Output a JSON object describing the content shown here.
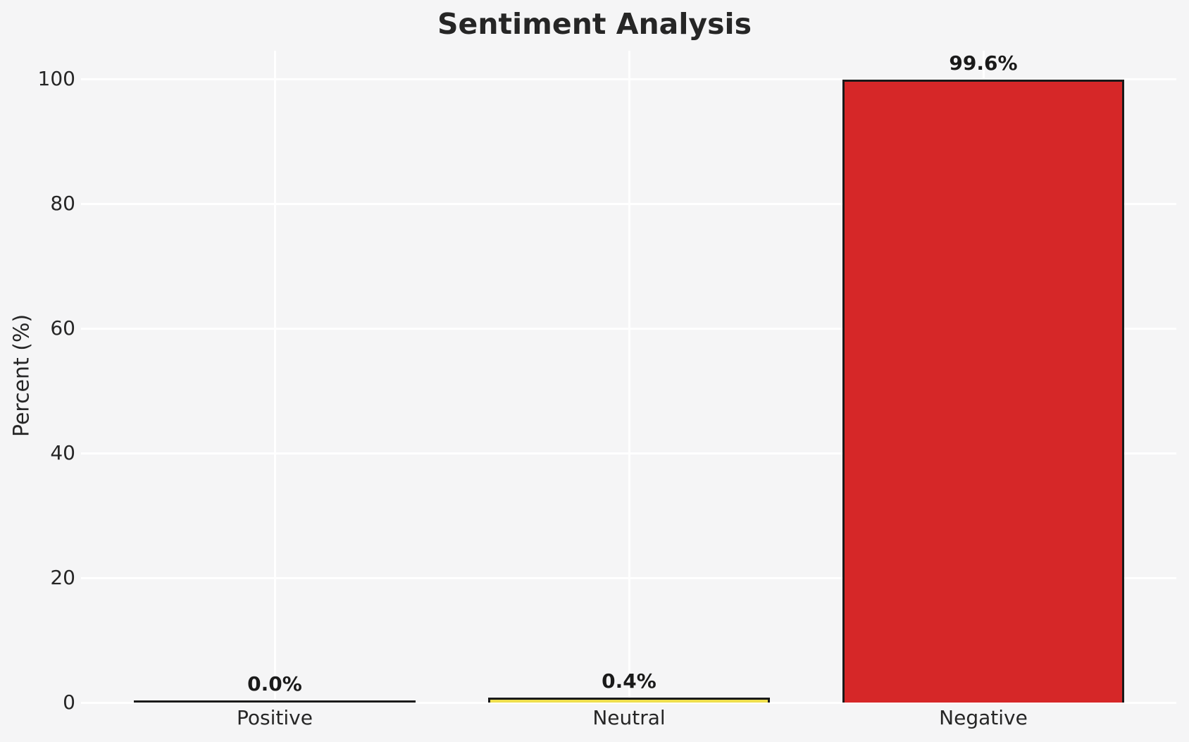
{
  "title": "Sentiment Analysis",
  "chart_data": {
    "type": "bar",
    "title": "Sentiment Analysis",
    "xlabel": "",
    "ylabel": "Percent (%)",
    "categories": [
      "Positive",
      "Neutral",
      "Negative"
    ],
    "values": [
      0.0,
      0.4,
      99.6
    ],
    "value_labels": [
      "0.0%",
      "0.4%",
      "99.6%"
    ],
    "yticks": [
      0,
      20,
      40,
      60,
      80,
      100
    ],
    "ylim": [
      0,
      105
    ],
    "grid": true,
    "gridline_color": "#ffffff",
    "background_color": "#f5f5f6",
    "bar_edge_color": "#1a1a1a",
    "bar_colors": [
      "#1a1a1a",
      "#efdf4e",
      "#d62728"
    ],
    "legend": false
  }
}
